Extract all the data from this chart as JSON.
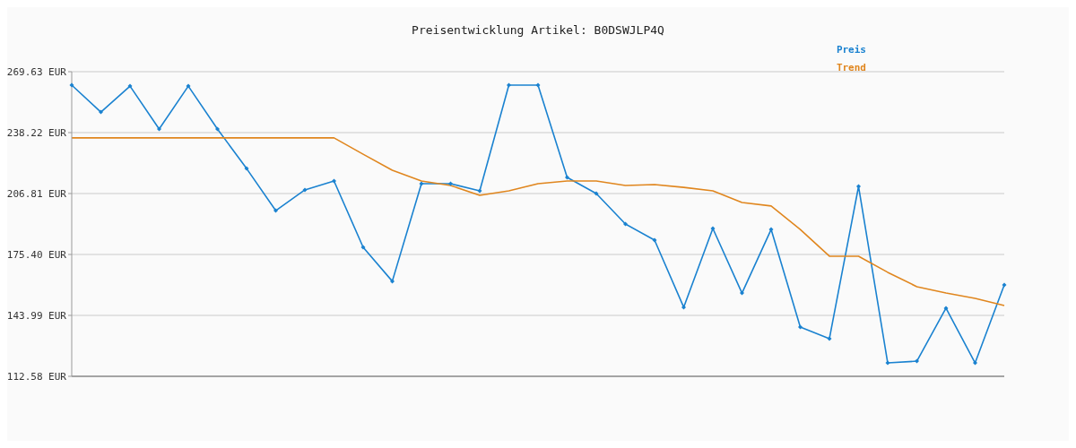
{
  "chart_data": {
    "type": "line",
    "title": "Preisentwicklung Artikel: B0DSWJLP4Q",
    "categories": [
      null,
      null,
      null,
      null,
      null,
      null,
      null,
      null,
      null,
      null,
      null,
      null,
      null,
      null,
      null,
      null,
      null,
      null,
      null,
      null,
      null,
      null,
      null,
      null,
      null,
      null,
      null,
      null,
      null,
      null,
      null,
      null,
      null
    ],
    "series": [
      {
        "name": "Preis",
        "color": "#1a82d0",
        "marker": "diamond",
        "values": [
          262.7,
          248.8,
          262.2,
          240.1,
          262.2,
          240.1,
          219.7,
          198.0,
          208.7,
          213.3,
          179.1,
          161.6,
          211.9,
          211.9,
          208.2,
          262.7,
          262.7,
          215.1,
          206.8,
          191.1,
          182.8,
          148.2,
          188.8,
          155.5,
          188.3,
          138.0,
          132.0,
          210.5,
          119.5,
          120.4,
          147.7,
          119.5,
          159.7
        ]
      },
      {
        "name": "Trend",
        "color": "#e0861e",
        "marker": "none",
        "values": [
          235.5,
          235.5,
          235.5,
          235.5,
          235.5,
          235.5,
          235.5,
          235.5,
          235.5,
          235.5,
          227.1,
          218.8,
          213.3,
          211.0,
          205.9,
          208.2,
          211.9,
          213.3,
          213.3,
          211.0,
          211.4,
          210.0,
          208.2,
          202.2,
          200.4,
          188.3,
          174.5,
          174.5,
          166.2,
          158.8,
          155.5,
          152.8,
          149.1
        ]
      }
    ],
    "ylim": [
      112.58,
      269.63
    ],
    "yticks": [
      {
        "value": 112.58,
        "label": "112.58 EUR"
      },
      {
        "value": 143.99,
        "label": "143.99 EUR"
      },
      {
        "value": 175.4,
        "label": "175.40 EUR"
      },
      {
        "value": 206.81,
        "label": "206.81 EUR"
      },
      {
        "value": 238.22,
        "label": "238.22 EUR"
      },
      {
        "value": 269.63,
        "label": "269.63 EUR"
      }
    ],
    "grid": "y",
    "legend": "top right",
    "tick_labels": "y",
    "line_style": "solid"
  }
}
